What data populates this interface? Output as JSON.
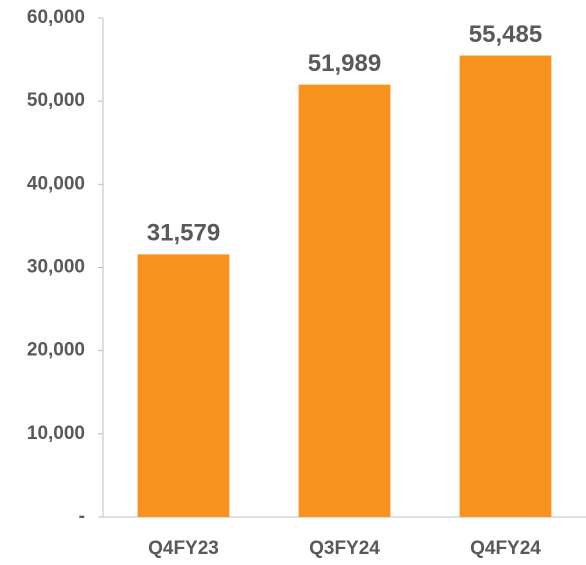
{
  "chart_data": {
    "type": "bar",
    "categories": [
      "Q4FY23",
      "Q3FY24",
      "Q4FY24"
    ],
    "values": [
      31579,
      51989,
      55485
    ],
    "value_labels": [
      "31,579",
      "51,989",
      "55,485"
    ],
    "color": "#f7931e",
    "ylim": [
      0,
      60000
    ],
    "yticks": [
      {
        "value": 0,
        "label": "-"
      },
      {
        "value": 10000,
        "label": "10,000"
      },
      {
        "value": 20000,
        "label": "20,000"
      },
      {
        "value": 30000,
        "label": "30,000"
      },
      {
        "value": 40000,
        "label": "40,000"
      },
      {
        "value": 50000,
        "label": "50,000"
      },
      {
        "value": 60000,
        "label": "60,000"
      }
    ],
    "grid": false
  }
}
